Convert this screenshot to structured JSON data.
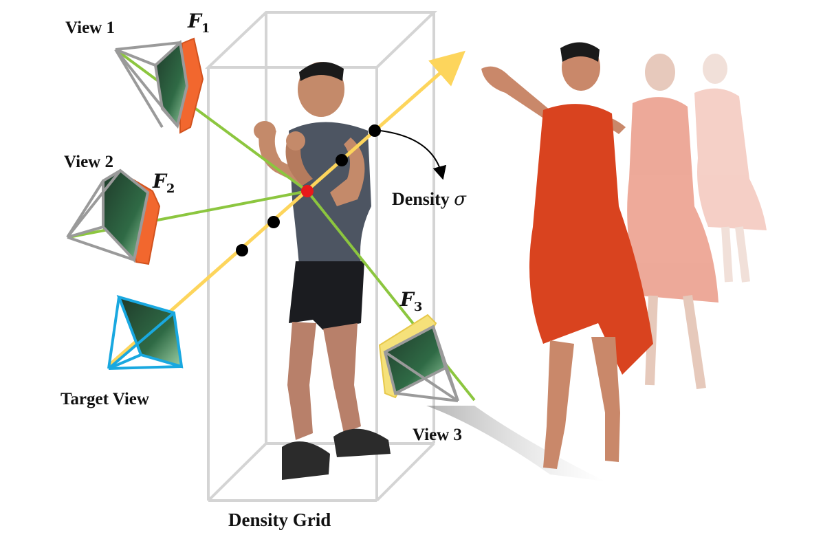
{
  "labels": {
    "view1": "View 1",
    "view2": "View 2",
    "view3": "View 3",
    "target_view": "Target View",
    "density_grid": "Density Grid",
    "density_prefix": "Density ",
    "sigma": "σ",
    "f_letter": "F",
    "f1_sub": "1",
    "f2_sub": "2",
    "f3_sub": "3"
  },
  "colors": {
    "green_ray": "#8cc63f",
    "target_ray": "#fdd55c",
    "intersection_point": "#e8191b",
    "sample_point": "#000000",
    "grid_box": "#d4d4d4",
    "camera_frame": "#9a9a9a",
    "target_frame": "#19a8e0",
    "feature_plane_orange": "#f2672e",
    "feature_plane_yellow": "#f5e17a",
    "dress_red": "#d9431f",
    "skin": "#c9886a"
  },
  "icons": {
    "camera": "camera-frustum-icon",
    "feature_plane": "feature-plane-icon",
    "dancer": "dancer-figure-icon",
    "boxer": "boxer-figure-icon"
  }
}
